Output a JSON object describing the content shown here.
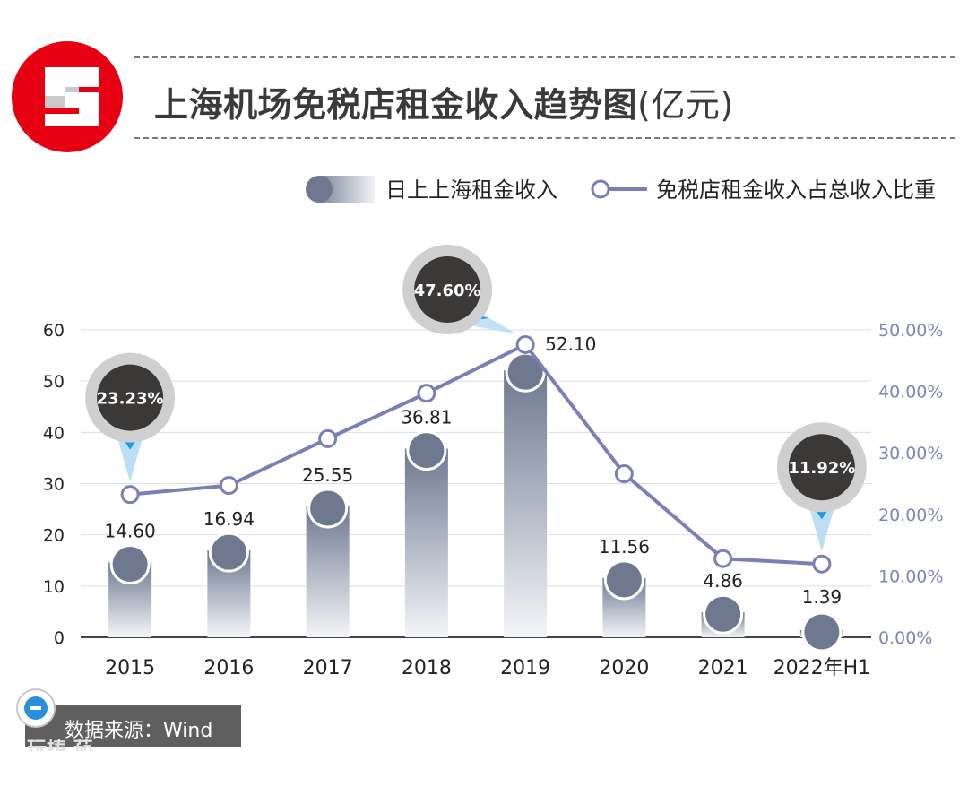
{
  "header": {
    "title": "上海机场免税店租金收入趋势图",
    "title_unit": "(亿元)"
  },
  "legend": {
    "bar_label": "日上上海租金收入",
    "line_label": "免税店租金收入占总收入比重"
  },
  "source": {
    "text": "数据来源：Wind",
    "watermark": "玩梼 茄"
  },
  "colors": {
    "brand_red": "#e60012",
    "bar_top": "#6e7990",
    "bar_bottom": "#f4f5f8",
    "line": "#7a7fb5",
    "axis_right": "#7f84b8",
    "callout_dark": "#3b3838",
    "callout_ring": "#cfcfcf",
    "pointer_blue": "#1f97e0"
  },
  "chart_data": {
    "type": "bar",
    "categories": [
      "2015",
      "2016",
      "2017",
      "2018",
      "2019",
      "2020",
      "2021",
      "2022年H1"
    ],
    "series": [
      {
        "name": "日上上海租金收入",
        "type": "bar",
        "values": [
          14.6,
          16.94,
          25.55,
          36.81,
          52.1,
          11.56,
          4.86,
          1.39
        ],
        "labels": [
          "14.60",
          "16.94",
          "25.55",
          "36.81",
          "52.10",
          "11.56",
          "4.86",
          "1.39"
        ],
        "axis": "left"
      },
      {
        "name": "免税店租金收入占总收入比重",
        "type": "line",
        "values": [
          23.23,
          24.7,
          32.3,
          39.7,
          47.6,
          26.6,
          12.8,
          11.92
        ],
        "axis": "right"
      }
    ],
    "callouts": [
      {
        "index": 0,
        "label": "23.23%"
      },
      {
        "index": 4,
        "label": "47.60%"
      },
      {
        "index": 7,
        "label": "11.92%"
      }
    ],
    "ylim_left": [
      0,
      60
    ],
    "yticks_left": [
      "0",
      "10",
      "20",
      "30",
      "40",
      "50",
      "60"
    ],
    "ylim_right": [
      0,
      50
    ],
    "yticks_right": [
      "0.00%",
      "10.00%",
      "20.00%",
      "30.00%",
      "40.00%",
      "50.00%"
    ],
    "grid": true,
    "legend_position": "top-right"
  }
}
